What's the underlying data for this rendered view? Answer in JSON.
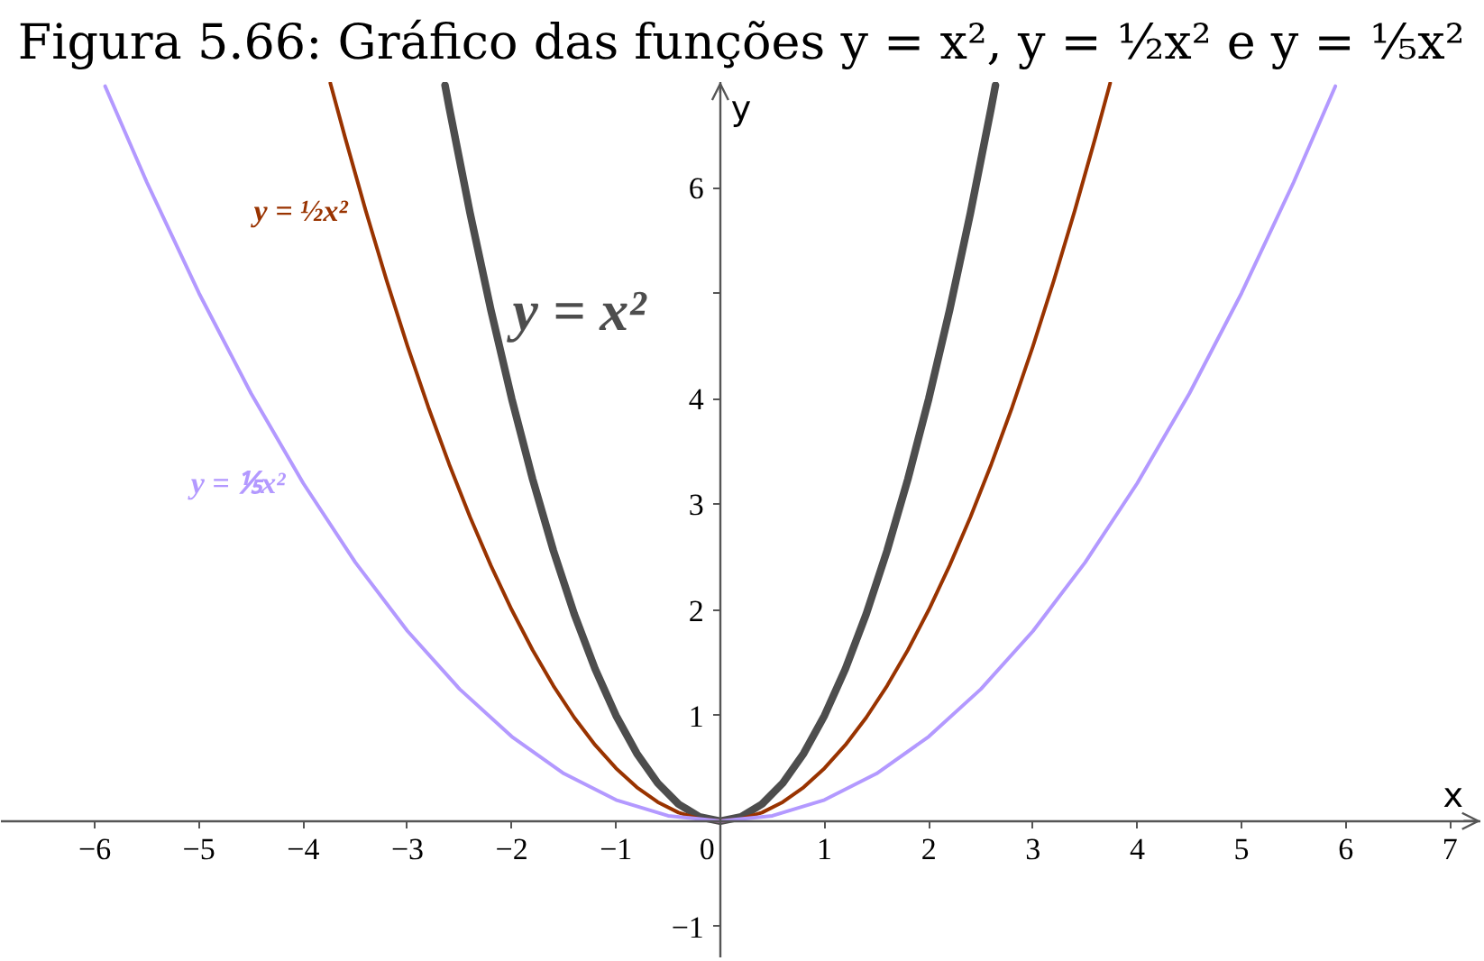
{
  "chart_data": {
    "type": "line",
    "title": "Figura 5.66: Gráfico das funções y = x², y = ½x² e y = ⅕x²",
    "xlabel": "x",
    "ylabel": "y",
    "series": [
      {
        "name": "y = x²",
        "color": "#4d4d4d",
        "x": [
          -2.64,
          -2.6,
          -2.4,
          -2.2,
          -2.0,
          -1.8,
          -1.6,
          -1.4,
          -1.2,
          -1.0,
          -0.8,
          -0.6,
          -0.4,
          -0.2,
          0,
          0.2,
          0.4,
          0.6,
          0.8,
          1.0,
          1.2,
          1.4,
          1.6,
          1.8,
          2.0,
          2.2,
          2.4,
          2.6,
          2.64
        ],
        "values": [
          6.97,
          6.76,
          5.76,
          4.84,
          4,
          3.24,
          2.56,
          1.96,
          1.44,
          1,
          0.64,
          0.36,
          0.16,
          0.04,
          0,
          0.04,
          0.16,
          0.36,
          0.64,
          1,
          1.44,
          1.96,
          2.56,
          3.24,
          4,
          4.84,
          5.76,
          6.76,
          6.97
        ]
      },
      {
        "name": "y = ½x²",
        "color": "#993300",
        "x": [
          -3.74,
          -3.6,
          -3.4,
          -3.2,
          -3.0,
          -2.8,
          -2.6,
          -2.4,
          -2.2,
          -2.0,
          -1.8,
          -1.6,
          -1.4,
          -1.2,
          -1.0,
          -0.8,
          -0.6,
          -0.4,
          -0.2,
          0,
          0.2,
          0.4,
          0.6,
          0.8,
          1.0,
          1.2,
          1.4,
          1.6,
          1.8,
          2.0,
          2.2,
          2.4,
          2.6,
          2.8,
          3.0,
          3.2,
          3.4,
          3.6,
          3.74
        ],
        "values": [
          6.99,
          6.48,
          5.78,
          5.12,
          4.5,
          3.92,
          3.38,
          2.88,
          2.42,
          2,
          1.62,
          1.28,
          0.98,
          0.72,
          0.5,
          0.32,
          0.18,
          0.08,
          0.02,
          0,
          0.02,
          0.08,
          0.18,
          0.32,
          0.5,
          0.72,
          0.98,
          1.28,
          1.62,
          2,
          2.42,
          2.88,
          3.38,
          3.92,
          4.5,
          5.12,
          5.78,
          6.48,
          6.99
        ]
      },
      {
        "name": "y = ⅕x²",
        "color": "#b399ff",
        "x": [
          -5.9,
          -5.5,
          -5.0,
          -4.5,
          -4.0,
          -3.5,
          -3.0,
          -2.5,
          -2.0,
          -1.5,
          -1.0,
          -0.5,
          0,
          0.5,
          1.0,
          1.5,
          2.0,
          2.5,
          3.0,
          3.5,
          4.0,
          4.5,
          5.0,
          5.5,
          5.9
        ],
        "values": [
          6.96,
          6.05,
          5,
          4.05,
          3.2,
          2.45,
          1.8,
          1.25,
          0.8,
          0.45,
          0.2,
          0.05,
          0,
          0.05,
          0.2,
          0.45,
          0.8,
          1.25,
          1.8,
          2.45,
          3.2,
          4.05,
          5,
          6.05,
          6.96
        ]
      }
    ],
    "xlim": [
      -6.9,
      7.3
    ],
    "ylim": [
      -1.3,
      7.0
    ],
    "xticks": [
      -6,
      -5,
      -4,
      -3,
      -2,
      -1,
      0,
      1,
      2,
      3,
      4,
      5,
      6,
      7
    ],
    "yticks": [
      -1,
      1,
      2,
      3,
      4,
      {
        "value": 5,
        "label": null
      },
      6
    ]
  }
}
